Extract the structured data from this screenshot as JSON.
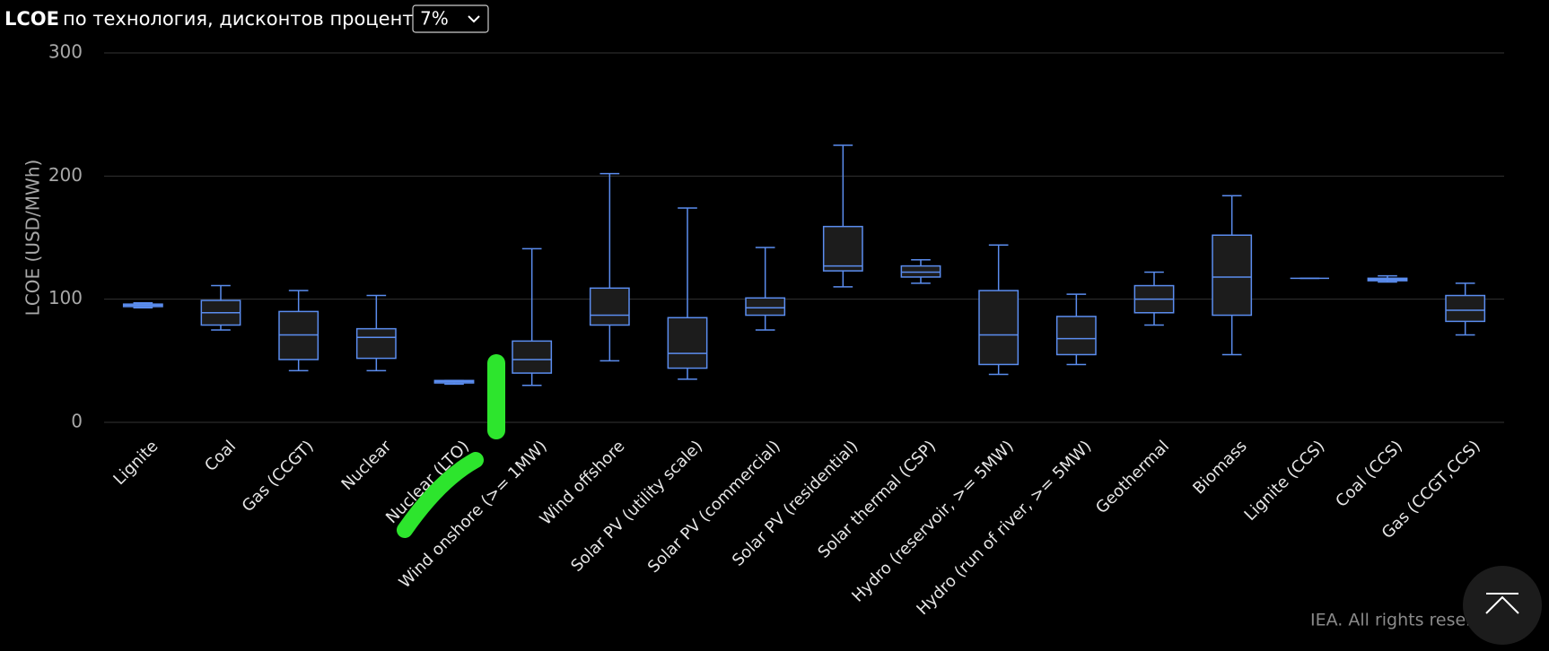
{
  "header": {
    "title_bold": "LCOE",
    "title": "по технология, дисконтов процент от",
    "dropdown": "7%"
  },
  "chart_data": {
    "type": "box",
    "y_label": "LCOE (USD/MWh)",
    "color": "#5b8def",
    "categories": [
      "Lignite",
      "Coal",
      "Gas (CCGT)",
      "Nuclear",
      "Nuclear (LTO)",
      "Wind onshore (>= 1MW)",
      "Wind offshore",
      "Solar PV (utility scale)",
      "Solar PV (commercial)",
      "Solar PV (residential)",
      "Solar thermal (CSP)",
      "Hydro (reservoir, >= 5MW)",
      "Hydro (run of river, >= 5MW)",
      "Geothermal",
      "Biomass",
      "Lignite (CCS)",
      "Coal (CCS)",
      "Gas (CCGT,CCS)"
    ],
    "min": [
      93,
      75,
      42,
      42,
      31,
      30,
      50,
      35,
      75,
      110,
      113,
      39,
      47,
      79,
      55,
      117,
      114,
      71
    ],
    "q1": [
      94,
      79,
      51,
      52,
      32,
      40,
      79,
      44,
      87,
      123,
      118,
      47,
      55,
      89,
      87,
      117,
      115,
      82
    ],
    "median": [
      95,
      89,
      71,
      69,
      33,
      51,
      87,
      56,
      93,
      127,
      122,
      71,
      68,
      100,
      118,
      117,
      116,
      91
    ],
    "q3": [
      96,
      99,
      90,
      76,
      34,
      66,
      109,
      85,
      101,
      159,
      127,
      107,
      86,
      111,
      152,
      117,
      117,
      103
    ],
    "max": [
      97,
      111,
      107,
      103,
      34,
      141,
      202,
      174,
      142,
      225,
      132,
      144,
      104,
      122,
      184,
      117,
      119,
      113
    ],
    "ylim": [
      0,
      300
    ],
    "yticks": [
      0,
      100,
      200,
      300
    ],
    "grid": true
  },
  "footer": "IEA. All rights reserved."
}
